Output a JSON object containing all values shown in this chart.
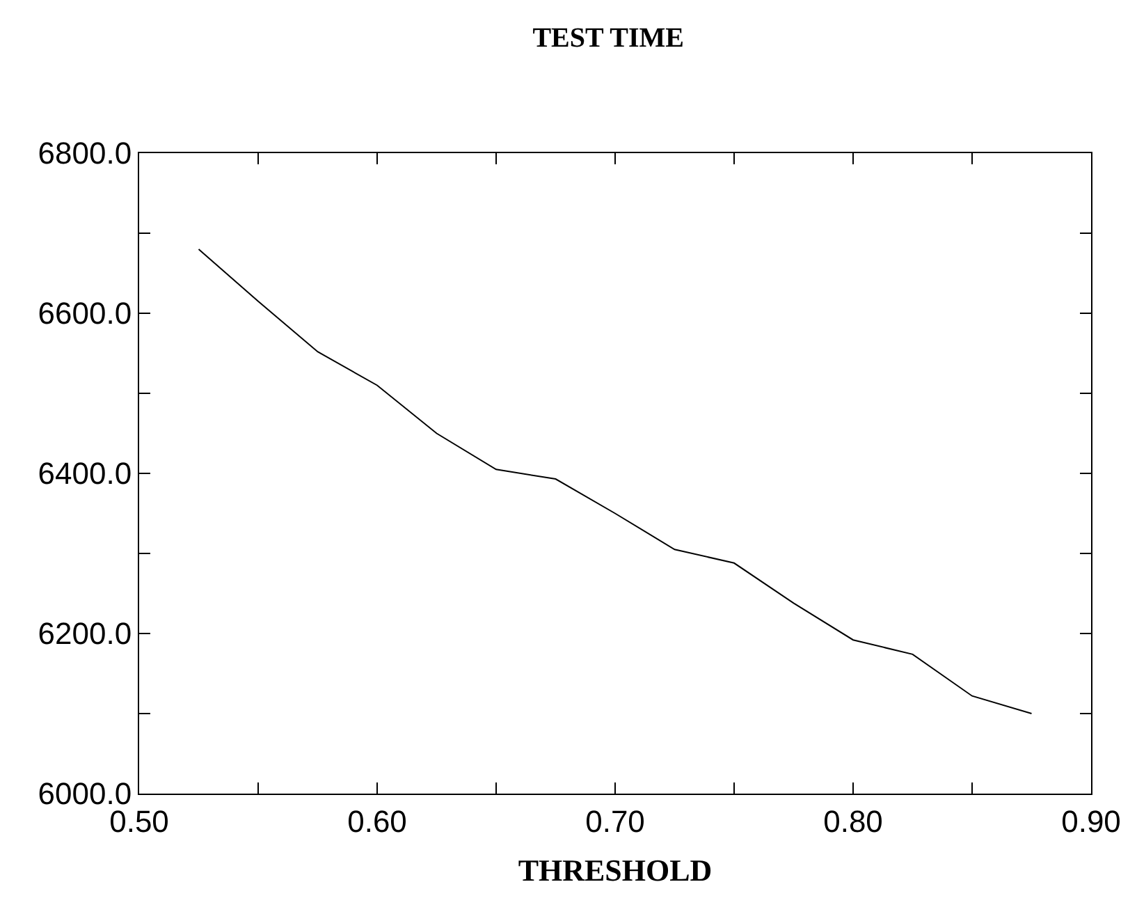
{
  "chart_data": {
    "type": "line",
    "title": "TEST TIME",
    "xlabel": "THRESHOLD",
    "x": [
      0.525,
      0.55,
      0.575,
      0.6,
      0.625,
      0.65,
      0.675,
      0.7,
      0.725,
      0.75,
      0.775,
      0.8,
      0.825,
      0.85,
      0.875
    ],
    "series": [
      {
        "color": "#000000",
        "values": [
          6680,
          6615,
          6552,
          6510,
          6450,
          6405,
          6393,
          6350,
          6305,
          6288,
          6238,
          6192,
          6174,
          6122,
          6100
        ]
      }
    ],
    "xlim": [
      0.5,
      0.9
    ],
    "xticks": [
      {
        "value": 0.5,
        "label": "0.50"
      },
      {
        "value": 0.55,
        "label": null
      },
      {
        "value": 0.6,
        "label": "0.60"
      },
      {
        "value": 0.65,
        "label": null
      },
      {
        "value": 0.7,
        "label": "0.70"
      },
      {
        "value": 0.75,
        "label": null
      },
      {
        "value": 0.8,
        "label": "0.80"
      },
      {
        "value": 0.85,
        "label": null
      },
      {
        "value": 0.9,
        "label": "0.90"
      }
    ],
    "ylim": [
      6000,
      6800
    ],
    "yticks": [
      {
        "value": 6000,
        "label": "6000.0"
      },
      {
        "value": 6100,
        "label": null
      },
      {
        "value": 6200,
        "label": "6200.0"
      },
      {
        "value": 6300,
        "label": null
      },
      {
        "value": 6400,
        "label": "6400.0"
      },
      {
        "value": 6500,
        "label": null
      },
      {
        "value": 6600,
        "label": "6600.0"
      },
      {
        "value": 6700,
        "label": null
      },
      {
        "value": 6800,
        "label": "6800.0"
      }
    ],
    "legend": false,
    "marker": "none",
    "line_style": "solid"
  }
}
